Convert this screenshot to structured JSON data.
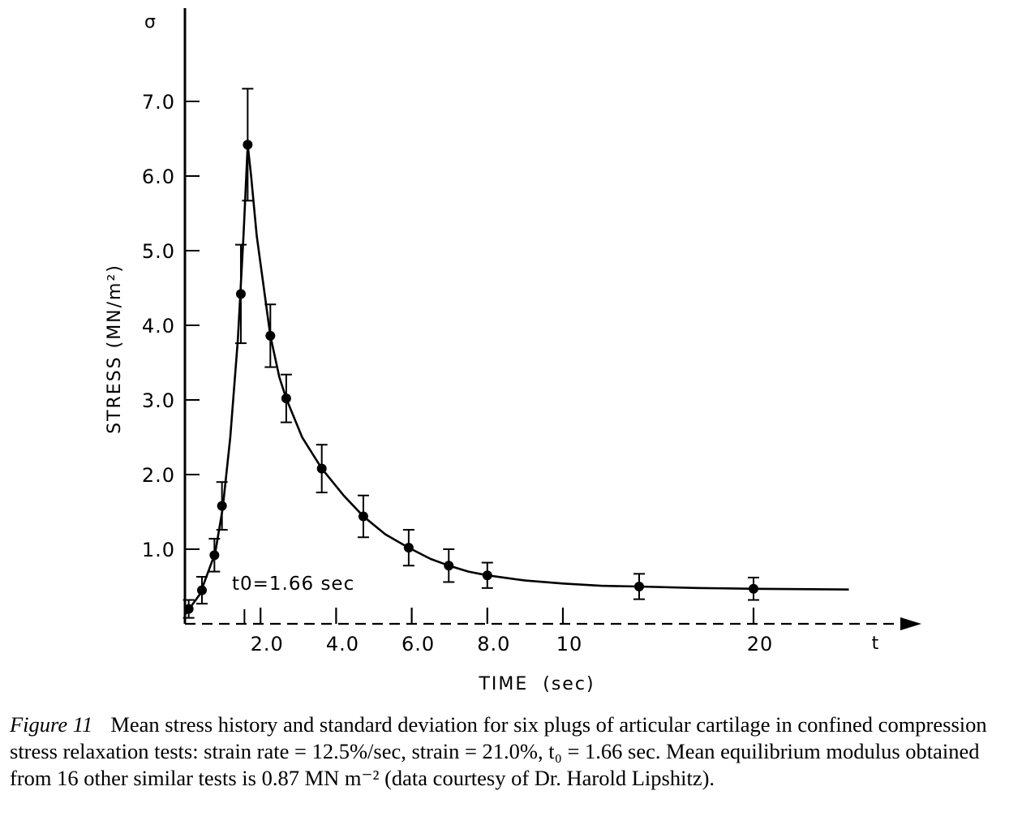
{
  "chart_data": {
    "type": "scatter",
    "y_axis_symbol": "σ",
    "ylabel": "STRESS (MN/m²)",
    "xlabel": "TIME  (sec)",
    "x_axis_end_label": "t",
    "y_ticks": [
      1.0,
      2.0,
      3.0,
      4.0,
      5.0,
      6.0,
      7.0
    ],
    "y_tick_labels": [
      "1.0",
      "2.0",
      "3.0",
      "4.0",
      "5.0",
      "6.0",
      "7.0"
    ],
    "x_ticks": [
      2,
      4,
      6,
      8,
      10,
      20
    ],
    "x_tick_labels": [
      "2.0",
      "4.0",
      "6.0",
      "8.0",
      "10",
      "20"
    ],
    "ylim": [
      0,
      7.7
    ],
    "annotation": "t0=1.66 sec",
    "series": [
      {
        "points": [
          {
            "x": 0.1,
            "y": 0.2,
            "err": 0.12
          },
          {
            "x": 0.45,
            "y": 0.45,
            "err": 0.18
          },
          {
            "x": 0.78,
            "y": 0.92,
            "err": 0.22
          },
          {
            "x": 0.98,
            "y": 1.58,
            "err": 0.32
          },
          {
            "x": 1.48,
            "y": 4.42,
            "err": 0.66
          },
          {
            "x": 1.66,
            "y": 6.42,
            "err": 0.75
          },
          {
            "x": 2.26,
            "y": 3.86,
            "err": 0.42
          },
          {
            "x": 2.68,
            "y": 3.02,
            "err": 0.32
          },
          {
            "x": 3.62,
            "y": 2.08,
            "err": 0.32
          },
          {
            "x": 4.72,
            "y": 1.44,
            "err": 0.28
          },
          {
            "x": 5.92,
            "y": 1.02,
            "err": 0.24
          },
          {
            "x": 6.98,
            "y": 0.78,
            "err": 0.22
          },
          {
            "x": 8.0,
            "y": 0.65,
            "err": 0.17
          },
          {
            "x": 14.0,
            "y": 0.5,
            "err": 0.17
          },
          {
            "x": 20.0,
            "y": 0.47,
            "err": 0.15
          }
        ]
      }
    ],
    "fit_curve": [
      [
        0.0,
        0.12
      ],
      [
        0.4,
        0.4
      ],
      [
        0.8,
        0.95
      ],
      [
        1.0,
        1.55
      ],
      [
        1.2,
        2.5
      ],
      [
        1.4,
        3.8
      ],
      [
        1.55,
        5.2
      ],
      [
        1.66,
        6.42
      ],
      [
        1.75,
        6.0
      ],
      [
        1.9,
        5.2
      ],
      [
        2.1,
        4.45
      ],
      [
        2.26,
        3.86
      ],
      [
        2.5,
        3.3
      ],
      [
        2.68,
        3.02
      ],
      [
        3.1,
        2.5
      ],
      [
        3.62,
        2.08
      ],
      [
        4.2,
        1.72
      ],
      [
        4.72,
        1.44
      ],
      [
        5.3,
        1.2
      ],
      [
        5.92,
        1.02
      ],
      [
        6.5,
        0.87
      ],
      [
        6.98,
        0.78
      ],
      [
        7.5,
        0.7
      ],
      [
        8.0,
        0.65
      ],
      [
        9.0,
        0.58
      ],
      [
        10.0,
        0.54
      ],
      [
        12.0,
        0.51
      ],
      [
        14.0,
        0.5
      ],
      [
        17.0,
        0.48
      ],
      [
        20.0,
        0.47
      ],
      [
        25.0,
        0.46
      ]
    ]
  },
  "caption": {
    "label": "Figure 11",
    "text": "Mean stress history and standard deviation for six plugs of articular cartilage in confined compression stress relaxation tests: strain rate = 12.5%/sec, strain = 21.0%, t₀ = 1.66 sec. Mean equilibrium modulus obtained from 16 other similar tests is 0.87 MN m⁻² (data courtesy of Dr. Harold Lipshitz)."
  }
}
